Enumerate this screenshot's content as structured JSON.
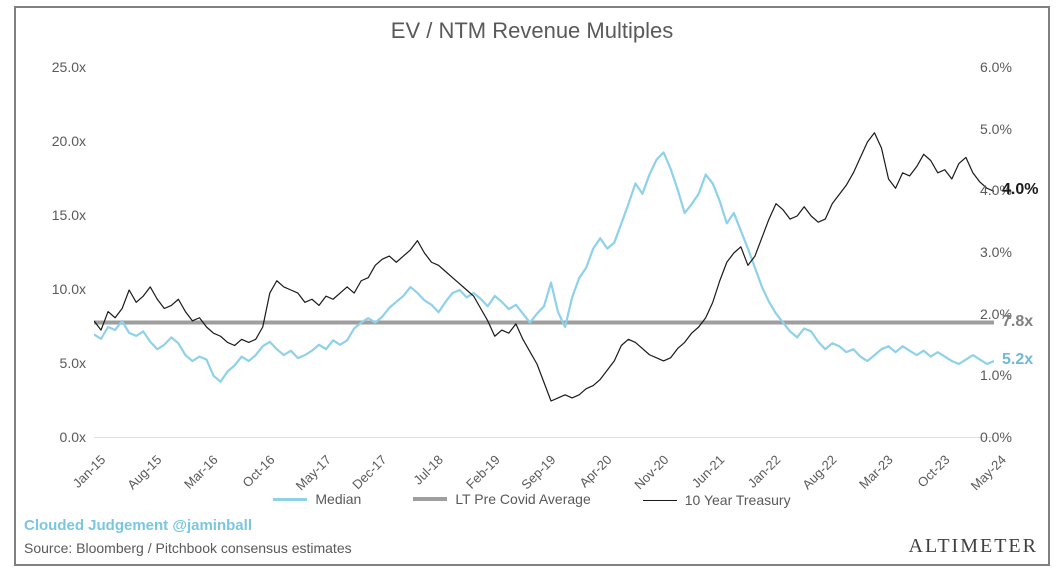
{
  "title": "EV / NTM Revenue Multiples",
  "attribution": "Clouded Judgement @jaminball",
  "source": "Source: Bloomberg / Pitchbook consensus estimates",
  "brand": "ALTIMETER",
  "chart": {
    "type": "dual-axis-line",
    "background_color": "#ffffff",
    "border_color": "#808080",
    "grid_color": "#bfbfbf",
    "axis_color": "#bfbfbf",
    "tick_color": "#bfbfbf",
    "tick_length": 5,
    "title_fontsize": 22,
    "label_fontsize": 14,
    "xlabel_fontsize": 13,
    "xlabel_rotation": -45,
    "y_left": {
      "min": 0,
      "max": 25,
      "step": 5,
      "suffix": "x",
      "decimals": 1,
      "ticks": [
        0,
        5,
        10,
        15,
        20,
        25
      ]
    },
    "y_right": {
      "min": 0,
      "max": 6,
      "step": 1,
      "suffix": "%",
      "decimals": 1,
      "ticks": [
        0,
        1,
        2,
        3,
        4,
        5,
        6
      ]
    },
    "x_categories": [
      "Jan-15",
      "Aug-15",
      "Mar-16",
      "Oct-16",
      "May-17",
      "Dec-17",
      "Jul-18",
      "Feb-19",
      "Sep-19",
      "Apr-20",
      "Nov-20",
      "Jun-21",
      "Jan-22",
      "Aug-22",
      "Mar-23",
      "Oct-23",
      "May-24"
    ],
    "constant_line": {
      "name": "LT Pre Covid Average",
      "value": 7.8,
      "axis": "left",
      "color": "#9e9e9e",
      "width": 4,
      "end_label": "7.8x",
      "end_label_color": "#808080"
    },
    "series": [
      {
        "name": "Median",
        "axis": "left",
        "color": "#8ed1e8",
        "width": 2.2,
        "end_label": "5.2x",
        "end_label_color": "#6fb8d6",
        "values": [
          7.0,
          6.7,
          7.5,
          7.3,
          7.9,
          7.1,
          6.9,
          7.2,
          6.5,
          6.0,
          6.3,
          6.8,
          6.4,
          5.6,
          5.2,
          5.5,
          5.3,
          4.2,
          3.8,
          4.5,
          4.9,
          5.5,
          5.2,
          5.6,
          6.2,
          6.5,
          6.0,
          5.6,
          5.9,
          5.4,
          5.6,
          5.9,
          6.3,
          6.0,
          6.6,
          6.3,
          6.6,
          7.4,
          7.8,
          8.1,
          7.8,
          8.2,
          8.8,
          9.2,
          9.6,
          10.2,
          9.8,
          9.3,
          9.0,
          8.5,
          9.2,
          9.8,
          10.0,
          9.5,
          9.8,
          9.4,
          8.9,
          9.6,
          9.2,
          8.7,
          9.0,
          8.4,
          7.8,
          8.4,
          8.9,
          10.5,
          8.5,
          7.5,
          9.5,
          10.8,
          11.5,
          12.8,
          13.5,
          12.8,
          13.2,
          14.5,
          15.8,
          17.2,
          16.5,
          17.8,
          18.8,
          19.3,
          18.2,
          16.8,
          15.2,
          15.8,
          16.5,
          17.8,
          17.2,
          16.0,
          14.5,
          15.2,
          14.0,
          12.8,
          11.5,
          10.2,
          9.2,
          8.4,
          7.8,
          7.2,
          6.8,
          7.4,
          7.2,
          6.5,
          6.0,
          6.4,
          6.2,
          5.8,
          6.0,
          5.5,
          5.2,
          5.6,
          6.0,
          6.2,
          5.8,
          6.2,
          5.9,
          5.6,
          5.9,
          5.5,
          5.8,
          5.5,
          5.2,
          5.0,
          5.3,
          5.6,
          5.3,
          5.0,
          5.2
        ]
      },
      {
        "name": "10 Year Treasury",
        "axis": "right",
        "color": "#1a1a1a",
        "width": 1.2,
        "end_label": "4.0%",
        "end_label_color": "#1a1a1a",
        "values": [
          1.9,
          1.75,
          2.05,
          1.95,
          2.1,
          2.4,
          2.2,
          2.3,
          2.45,
          2.25,
          2.1,
          2.15,
          2.25,
          2.05,
          1.9,
          1.95,
          1.8,
          1.7,
          1.65,
          1.55,
          1.5,
          1.6,
          1.55,
          1.6,
          1.8,
          2.35,
          2.55,
          2.45,
          2.4,
          2.35,
          2.2,
          2.25,
          2.15,
          2.3,
          2.25,
          2.35,
          2.45,
          2.35,
          2.55,
          2.6,
          2.8,
          2.9,
          2.95,
          2.85,
          2.95,
          3.05,
          3.2,
          3.0,
          2.85,
          2.8,
          2.7,
          2.6,
          2.5,
          2.4,
          2.3,
          2.1,
          1.9,
          1.65,
          1.75,
          1.7,
          1.85,
          1.6,
          1.4,
          1.2,
          0.9,
          0.6,
          0.65,
          0.7,
          0.65,
          0.7,
          0.8,
          0.85,
          0.95,
          1.1,
          1.25,
          1.5,
          1.6,
          1.55,
          1.45,
          1.35,
          1.3,
          1.25,
          1.3,
          1.45,
          1.55,
          1.7,
          1.8,
          1.95,
          2.2,
          2.55,
          2.85,
          3.0,
          3.1,
          2.8,
          2.95,
          3.25,
          3.55,
          3.8,
          3.7,
          3.55,
          3.6,
          3.75,
          3.6,
          3.5,
          3.55,
          3.8,
          3.95,
          4.1,
          4.3,
          4.55,
          4.8,
          4.95,
          4.7,
          4.2,
          4.05,
          4.3,
          4.25,
          4.4,
          4.6,
          4.5,
          4.3,
          4.35,
          4.2,
          4.45,
          4.55,
          4.3,
          4.15,
          4.05,
          4.0
        ]
      }
    ],
    "legend": [
      {
        "label": "Median",
        "color": "#8ed1e8",
        "width": 3
      },
      {
        "label": "LT Pre Covid Average",
        "color": "#9e9e9e",
        "width": 4
      },
      {
        "label": "10 Year Treasury",
        "color": "#1a1a1a",
        "width": 1.2
      }
    ]
  }
}
